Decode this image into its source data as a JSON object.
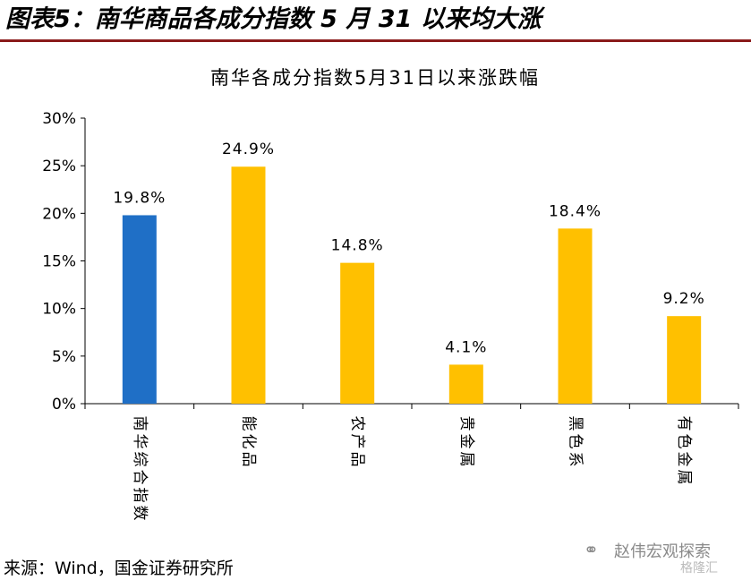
{
  "figure_title": "图表5：南华商品各成分指数 5 月 31 以来均大涨",
  "source_note": "来源：Wind，国金证券研究所",
  "watermark": {
    "icon": "wechat-icon",
    "name": "赵伟宏观探索",
    "brand": "格隆汇"
  },
  "colors": {
    "highlight": "#1f6fc6",
    "bar": "#ffc000",
    "title_rule": "#8a1a1a",
    "axis": "#000000"
  },
  "chart_data": {
    "type": "bar",
    "title": "南华各成分指数5月31日以来涨跌幅",
    "categories": [
      "南华综合指数",
      "能化品",
      "农产品",
      "贵金属",
      "黑色系",
      "有色金属"
    ],
    "values": [
      19.8,
      24.9,
      14.8,
      4.1,
      18.4,
      9.2
    ],
    "value_labels": [
      "19.8%",
      "24.9%",
      "14.8%",
      "4.1%",
      "18.4%",
      "9.2%"
    ],
    "highlight_index": 0,
    "ylim": [
      0,
      30
    ],
    "yticks": [
      0,
      5,
      10,
      15,
      20,
      25,
      30
    ],
    "ytick_labels": [
      "0%",
      "5%",
      "10%",
      "15%",
      "20%",
      "25%",
      "30%"
    ],
    "xlabel": "",
    "ylabel": "",
    "grid": false,
    "legend": "none"
  }
}
